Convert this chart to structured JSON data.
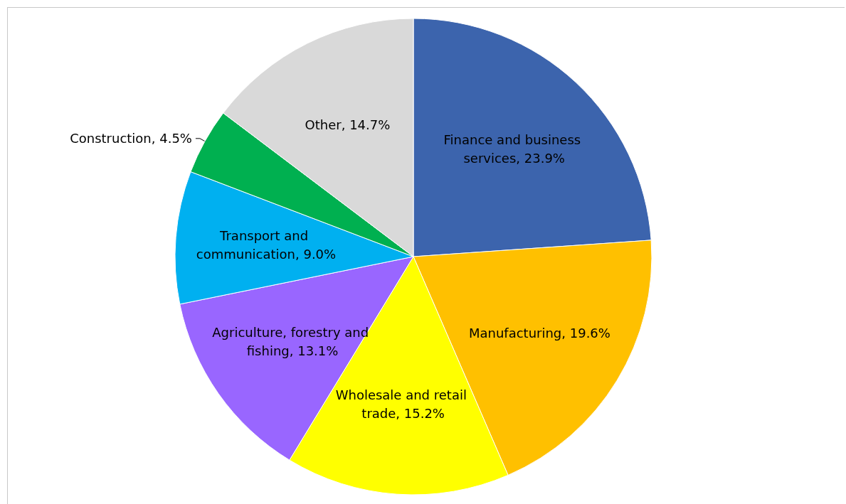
{
  "chart_data": {
    "type": "pie",
    "categories": [
      "Finance and business services",
      "Manufacturing",
      "Wholesale and retail trade",
      "Agriculture, forestry and fishing",
      "Transport and communication",
      "Construction",
      "Other"
    ],
    "values": [
      23.9,
      19.6,
      15.2,
      13.1,
      9.0,
      4.5,
      14.7
    ],
    "value_labels": [
      "23.9%",
      "19.6%",
      "15.2%",
      "13.1%",
      "9.0%",
      "4.5%",
      "14.7%"
    ],
    "colors": [
      "#3c64ad",
      "#ffc000",
      "#ffff00",
      "#9966ff",
      "#00b0f0",
      "#00b050",
      "#d9d9d9"
    ],
    "legend": false
  }
}
